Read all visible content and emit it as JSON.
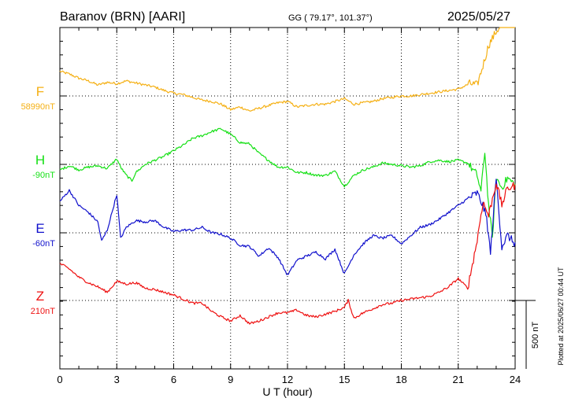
{
  "header": {
    "station": "Baranov (BRN)  [AARI]",
    "coords": "GG ( 79.17°, 101.37°)",
    "date": "2025/05/27"
  },
  "footer": {
    "plotted": "Plotted at 2025/06/27 00:44 UT",
    "scale_label": "500 nT"
  },
  "colors": {
    "F": "#f5b014",
    "H": "#16e016",
    "E": "#1010cc",
    "Z": "#ee1010",
    "axis": "#000000",
    "grid": "#000000"
  },
  "chart_data": {
    "type": "line",
    "xlabel": "U T (hour)",
    "x_ticks": [
      "0",
      "3",
      "6",
      "9",
      "12",
      "15",
      "18",
      "21",
      "24"
    ],
    "xlim": [
      0,
      24
    ],
    "grid": true,
    "scale_bar_nT": 500,
    "series": [
      {
        "name": "F",
        "baseline": "58990nT",
        "t": [
          0,
          0.5,
          1,
          1.5,
          2,
          2.5,
          3,
          3.5,
          4,
          4.5,
          5,
          5.5,
          6,
          6.5,
          7,
          7.5,
          8,
          8.5,
          9,
          9.5,
          10,
          10.5,
          11,
          11.5,
          12,
          12.5,
          13,
          13.5,
          14,
          14.5,
          15,
          15.5,
          16,
          16.5,
          17,
          17.5,
          18,
          18.5,
          19,
          19.5,
          20,
          20.5,
          21,
          21.3,
          21.6,
          22,
          22.3,
          22.6,
          23,
          23.5,
          24
        ],
        "v": [
          180,
          160,
          130,
          110,
          80,
          100,
          90,
          110,
          95,
          80,
          65,
          40,
          20,
          10,
          -10,
          -30,
          -40,
          -60,
          -100,
          -80,
          -110,
          -90,
          -70,
          -50,
          -40,
          -80,
          -70,
          -60,
          -60,
          -40,
          -20,
          -60,
          -50,
          -40,
          -20,
          -10,
          0,
          0,
          10,
          20,
          30,
          40,
          50,
          70,
          90,
          80,
          220,
          370,
          470,
          560,
          590
        ]
      },
      {
        "name": "H",
        "baseline": "-90nT",
        "t": [
          0,
          0.5,
          1,
          1.5,
          2,
          2.5,
          3,
          3.2,
          3.5,
          3.8,
          4,
          4.5,
          5,
          5.5,
          6,
          6.5,
          7,
          7.5,
          8,
          8.5,
          9,
          9.5,
          10,
          10.5,
          11,
          11.5,
          12,
          12.5,
          13,
          13.5,
          14,
          14.5,
          15,
          15.5,
          16,
          16.5,
          17,
          17.5,
          18,
          18.5,
          19,
          19.5,
          20,
          20.5,
          21,
          21.5,
          22,
          22.2,
          22.4,
          22.6,
          22.8,
          23,
          23.3,
          23.6,
          24
        ],
        "v": [
          -40,
          -10,
          -40,
          -20,
          -10,
          -30,
          40,
          -20,
          -80,
          -120,
          -60,
          0,
          30,
          60,
          100,
          140,
          190,
          210,
          240,
          260,
          220,
          160,
          150,
          80,
          30,
          -20,
          -20,
          -60,
          -60,
          -80,
          -80,
          -50,
          -160,
          -80,
          -40,
          -20,
          10,
          0,
          -10,
          -20,
          -10,
          20,
          30,
          20,
          30,
          10,
          -80,
          -200,
          100,
          -300,
          -540,
          -100,
          -170,
          -100,
          -150
        ]
      },
      {
        "name": "E",
        "baseline": "-60nT",
        "t": [
          0,
          0.5,
          1,
          1.5,
          2,
          2.2,
          2.5,
          3,
          3.2,
          3.5,
          4,
          4.5,
          5,
          5.5,
          6,
          6.5,
          7,
          7.5,
          8,
          8.5,
          9,
          9.5,
          10,
          10.5,
          11,
          11.5,
          12,
          12.5,
          13,
          13.5,
          14,
          14.5,
          15,
          15.5,
          16,
          16.5,
          17,
          17.5,
          18,
          18.5,
          19,
          19.5,
          20,
          20.5,
          21,
          21.5,
          22,
          22.3,
          22.5,
          22.7,
          23,
          23.3,
          23.6,
          24
        ],
        "v": [
          230,
          310,
          200,
          150,
          80,
          -60,
          20,
          280,
          -40,
          40,
          90,
          80,
          90,
          40,
          10,
          20,
          20,
          40,
          0,
          -10,
          -40,
          -90,
          -100,
          -170,
          -110,
          -180,
          -310,
          -200,
          -170,
          -140,
          -190,
          -120,
          -300,
          -160,
          -80,
          -20,
          -40,
          -20,
          -80,
          -20,
          40,
          60,
          100,
          150,
          200,
          250,
          290,
          200,
          100,
          -150,
          400,
          -100,
          -20,
          -80
        ]
      },
      {
        "name": "Z",
        "baseline": "210nT",
        "t": [
          0,
          0.5,
          1,
          1.5,
          2,
          2.5,
          3,
          3.5,
          4,
          4.5,
          5,
          5.5,
          6,
          6.5,
          7,
          7.5,
          8,
          8.5,
          9,
          9.5,
          10,
          10.5,
          11,
          11.5,
          12,
          12.5,
          13,
          13.5,
          14,
          14.5,
          15,
          15.2,
          15.5,
          16,
          16.5,
          17,
          17.5,
          18,
          18.5,
          19,
          19.5,
          20,
          20.5,
          21,
          21.5,
          22,
          22.3,
          22.6,
          23,
          23.3,
          23.6,
          24
        ],
        "v": [
          270,
          230,
          170,
          130,
          100,
          60,
          140,
          120,
          130,
          90,
          80,
          60,
          40,
          10,
          -20,
          -20,
          -80,
          -120,
          -150,
          -110,
          -170,
          -150,
          -120,
          -90,
          -90,
          -70,
          -110,
          -120,
          -100,
          -80,
          -50,
          0,
          -130,
          -90,
          -60,
          -30,
          -20,
          0,
          10,
          20,
          30,
          60,
          100,
          160,
          90,
          440,
          720,
          620,
          860,
          700,
          820,
          840
        ]
      }
    ]
  }
}
